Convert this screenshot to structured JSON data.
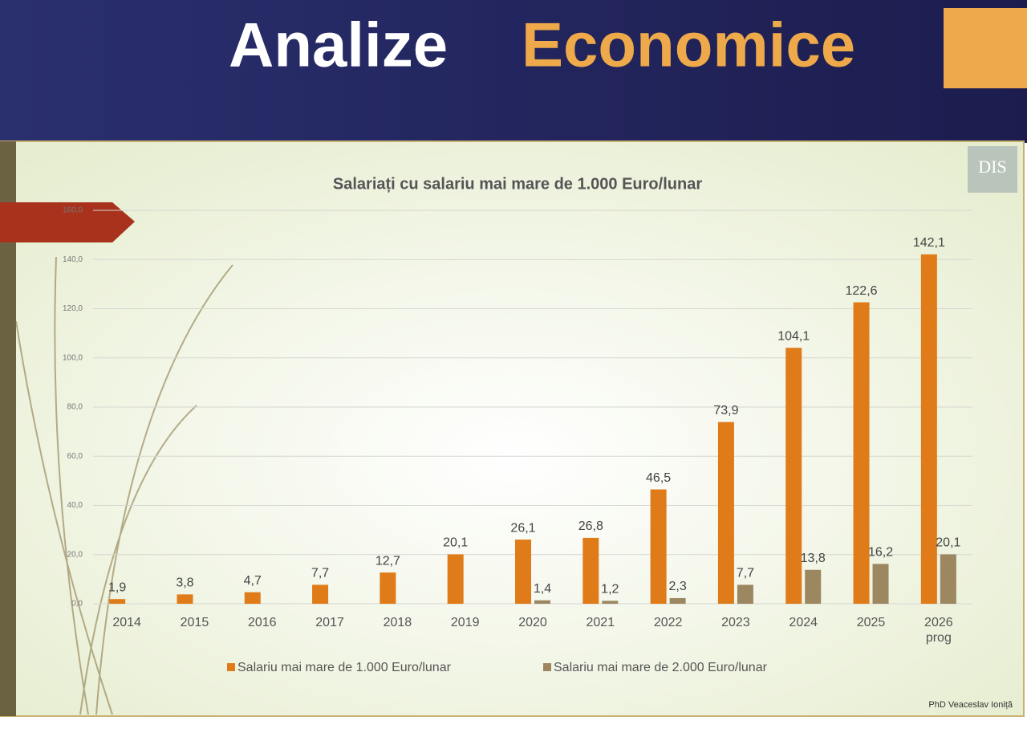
{
  "header": {
    "title": [
      "Analize",
      "Economice"
    ]
  },
  "logo": "DIS",
  "footer": {
    "author": "PhD Veaceslav Ioniță"
  },
  "chart_data": {
    "type": "bar",
    "title": "Salariați cu salariu mai mare de 1.000 Euro/lunar",
    "categories": [
      "2014",
      "2015",
      "2016",
      "2017",
      "2018",
      "2019",
      "2020",
      "2021",
      "2022",
      "2023",
      "2024",
      "2025",
      "2026 prog"
    ],
    "series": [
      {
        "name": "Salariu mai mare de 1.000 Euro/lunar",
        "color": "#e07b1a",
        "values": [
          1.9,
          3.8,
          4.7,
          7.7,
          12.7,
          20.1,
          26.1,
          26.8,
          46.5,
          73.9,
          104.1,
          122.6,
          142.1
        ],
        "value_labels": [
          "1,9",
          "3,8",
          "4,7",
          "7,7",
          "12,7",
          "20,1",
          "26,1",
          "26,8",
          "46,5",
          "73,9",
          "104,1",
          "122,6",
          "142,1"
        ]
      },
      {
        "name": "Salariu mai mare de 2.000 Euro/lunar",
        "color": "#9c8761",
        "values": [
          null,
          null,
          null,
          null,
          null,
          null,
          1.4,
          1.2,
          2.3,
          7.7,
          13.8,
          16.2,
          20.1
        ],
        "value_labels": [
          null,
          null,
          null,
          null,
          null,
          null,
          "1,4",
          "1,2",
          "2,3",
          "7,7",
          "13,8",
          "16,2",
          "20,1"
        ]
      }
    ],
    "ylim": [
      0,
      160
    ],
    "yticks": [
      {
        "value": 0,
        "label": "0,0"
      },
      {
        "value": 20,
        "label": "20,0"
      },
      {
        "value": 40,
        "label": "40,0"
      },
      {
        "value": 60,
        "label": "60,0"
      },
      {
        "value": 80,
        "label": "80,0"
      },
      {
        "value": 100,
        "label": "100,0"
      },
      {
        "value": 120,
        "label": "120,0"
      },
      {
        "value": 140,
        "label": "140,0"
      },
      {
        "value": 160,
        "label": "160,0"
      }
    ],
    "grid": true,
    "legend": "bottom"
  }
}
